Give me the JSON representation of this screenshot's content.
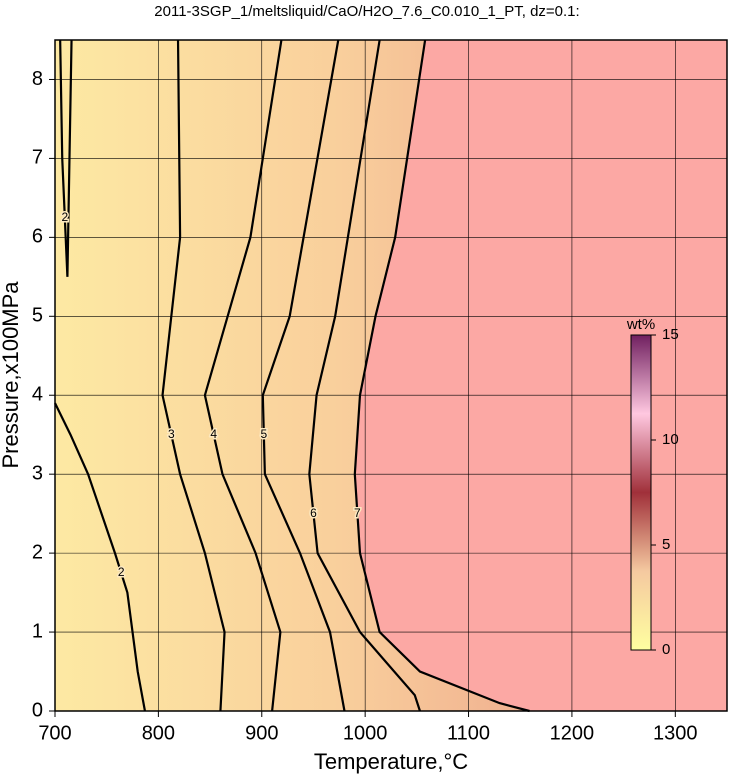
{
  "chart_data": {
    "type": "contour",
    "title": "2011-3SGP_1/meltsliquid/CaO/H2O_7.6_C0.010_1_PT, dz=0.1:",
    "x_label": "Temperature,°C",
    "y_label": "Pressure,x100MPa",
    "xlim": [
      700,
      1350
    ],
    "ylim": [
      0,
      8.5
    ],
    "xticks": [
      700,
      800,
      900,
      1000,
      1100,
      1200,
      1300
    ],
    "yticks": [
      0,
      1,
      2,
      3,
      4,
      5,
      6,
      7,
      8
    ],
    "grid": true,
    "series": [
      {
        "name": "2",
        "color": "#000000",
        "x": [
          705,
          707,
          712,
          714,
          716
        ],
        "y": [
          8.5,
          7,
          5.5,
          7,
          8.5
        ]
      },
      {
        "name": "2",
        "color": "#000000",
        "x": [
          700,
          715,
          732,
          758,
          770,
          775,
          780,
          787
        ],
        "y": [
          3.9,
          3.5,
          3,
          2,
          1.5,
          1,
          0.5,
          0
        ]
      },
      {
        "name": "3",
        "color": "#000000",
        "x": [
          819,
          821,
          804,
          821,
          845,
          864,
          860
        ],
        "y": [
          8.5,
          6,
          4,
          3,
          2,
          1,
          0
        ]
      },
      {
        "name": "4",
        "color": "#000000",
        "x": [
          919,
          889,
          845,
          862,
          894,
          918,
          910
        ],
        "y": [
          8.5,
          6,
          4,
          3,
          2,
          1,
          0
        ]
      },
      {
        "name": "5",
        "color": "#000000",
        "x": [
          974,
          927,
          901,
          903,
          937,
          966,
          980
        ],
        "y": [
          8.5,
          5,
          4,
          3,
          2,
          1,
          0
        ]
      },
      {
        "name": "6",
        "color": "#000000",
        "x": [
          1014,
          971,
          953,
          946,
          954,
          995,
          1048,
          1053
        ],
        "y": [
          8.5,
          5,
          4,
          3,
          2,
          1,
          0.2,
          0
        ]
      },
      {
        "name": "7",
        "color": "#000000",
        "x": [
          1058,
          1029,
          1010,
          995,
          990,
          995,
          1014,
          1053,
          1130,
          1159
        ],
        "y": [
          8.5,
          6,
          5,
          4,
          3,
          2,
          1,
          0.5,
          0.1,
          0
        ]
      }
    ],
    "colorbar": {
      "label": "wt%",
      "lim": [
        0,
        15
      ],
      "ticks": [
        0,
        5,
        10,
        15
      ]
    }
  }
}
